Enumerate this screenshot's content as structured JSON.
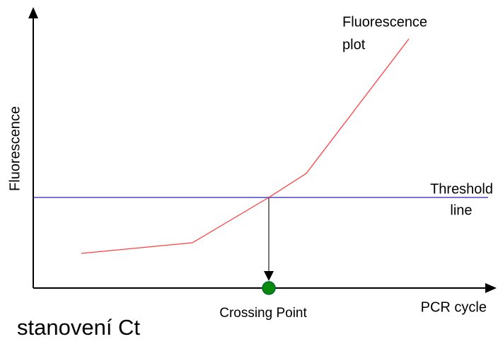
{
  "axes": {
    "y_label": "Fluorescence",
    "x_label": "PCR cycle"
  },
  "curve_label": {
    "lines": [
      "Fluorescence",
      "plot"
    ]
  },
  "threshold_label": {
    "lines": [
      "Threshold",
      "line"
    ]
  },
  "crossing_label": "Crossing Point",
  "caption": "stanovení Ct"
}
